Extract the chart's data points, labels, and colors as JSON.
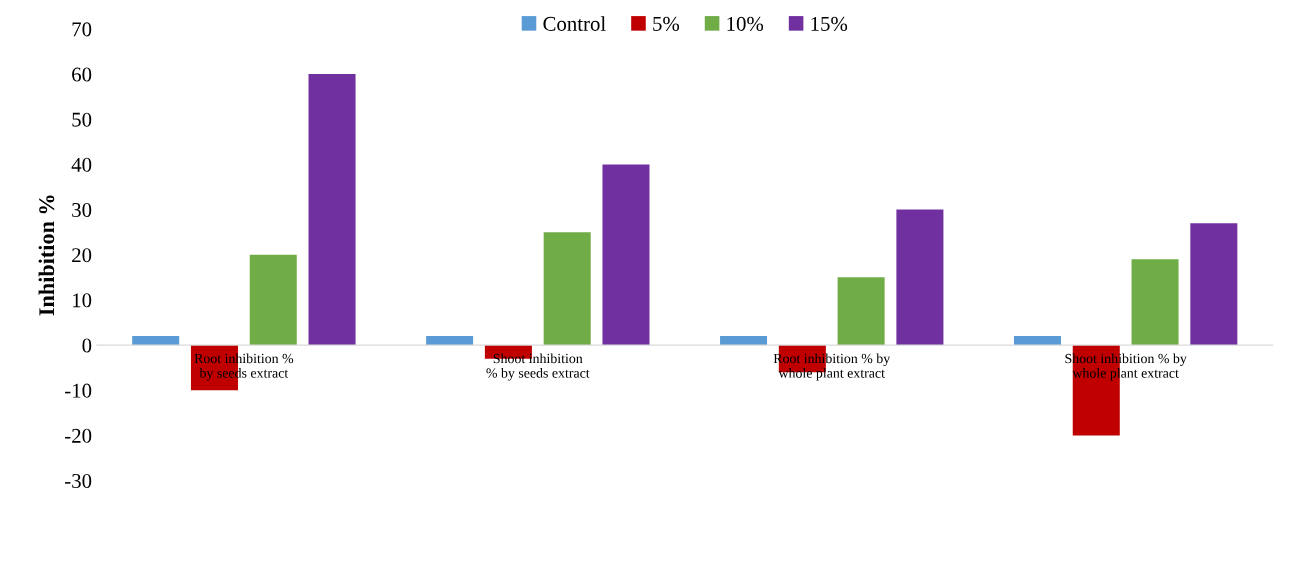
{
  "chart_data": {
    "type": "bar",
    "ylabel": "Inhibition %",
    "categories": [
      "Root inhibition % by seeds extract",
      "Shoot inhibition % by seeds extract",
      "Root inhibition % by whole plant extract",
      "Shoot inhibition % by whole plant extract"
    ],
    "series": [
      {
        "name": "Control",
        "color": "#5b9bd5",
        "values": [
          2,
          2,
          2,
          2
        ]
      },
      {
        "name": "5%",
        "color": "#c00000",
        "values": [
          -10,
          -3,
          -6,
          -20
        ]
      },
      {
        "name": "10%",
        "color": "#70ad47",
        "values": [
          20,
          25,
          15,
          19
        ]
      },
      {
        "name": "15%",
        "color": "#7030a0",
        "values": [
          60,
          40,
          30,
          27
        ]
      }
    ],
    "ylim": [
      -30,
      70
    ],
    "yticks": [
      -30,
      -20,
      -10,
      0,
      10,
      20,
      30,
      40,
      50,
      60,
      70
    ],
    "grid": false,
    "legend": "top"
  }
}
